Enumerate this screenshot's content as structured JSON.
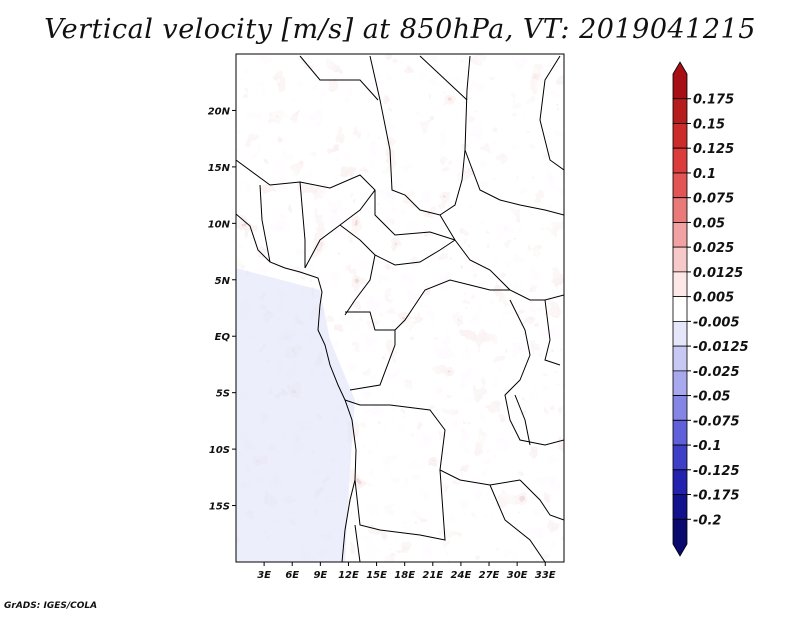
{
  "title": "Vertical velocity [m/s] at 850hPa, VT: 2019041215",
  "credit": "GrADS: IGES/COLA",
  "map": {
    "lon_range": [
      0,
      35
    ],
    "lat_range": [
      -20,
      25
    ],
    "lat_ticks": [
      {
        "value": 20,
        "label": "20N"
      },
      {
        "value": 15,
        "label": "15N"
      },
      {
        "value": 10,
        "label": "10N"
      },
      {
        "value": 5,
        "label": "5N"
      },
      {
        "value": 0,
        "label": "EQ"
      },
      {
        "value": -5,
        "label": "5S"
      },
      {
        "value": -10,
        "label": "10S"
      },
      {
        "value": -15,
        "label": "15S"
      }
    ],
    "lon_ticks": [
      {
        "value": 3,
        "label": "3E"
      },
      {
        "value": 6,
        "label": "6E"
      },
      {
        "value": 9,
        "label": "9E"
      },
      {
        "value": 12,
        "label": "12E"
      },
      {
        "value": 15,
        "label": "15E"
      },
      {
        "value": 18,
        "label": "18E"
      },
      {
        "value": 21,
        "label": "21E"
      },
      {
        "value": 24,
        "label": "24E"
      },
      {
        "value": 27,
        "label": "27E"
      },
      {
        "value": 30,
        "label": "30E"
      },
      {
        "value": 33,
        "label": "33E"
      }
    ]
  },
  "colorbar": {
    "labels": [
      "0.175",
      "0.15",
      "0.125",
      "0.1",
      "0.075",
      "0.05",
      "0.025",
      "0.0125",
      "0.005",
      "-0.005",
      "-0.0125",
      "-0.025",
      "-0.05",
      "-0.075",
      "-0.1",
      "-0.125",
      "-0.175",
      "-0.2"
    ],
    "colors": [
      "#a50f15",
      "#b71c1c",
      "#cb2b2b",
      "#dc3b3b",
      "#e35555",
      "#ea7a7a",
      "#f2a2a2",
      "#f8c9c9",
      "#fde8e8",
      "#ffffff",
      "#e6e6fb",
      "#c8c8f5",
      "#a8a8ef",
      "#8585e6",
      "#6060da",
      "#3e3ec8",
      "#2222ae",
      "#12128c",
      "#0a0a6e"
    ]
  }
}
